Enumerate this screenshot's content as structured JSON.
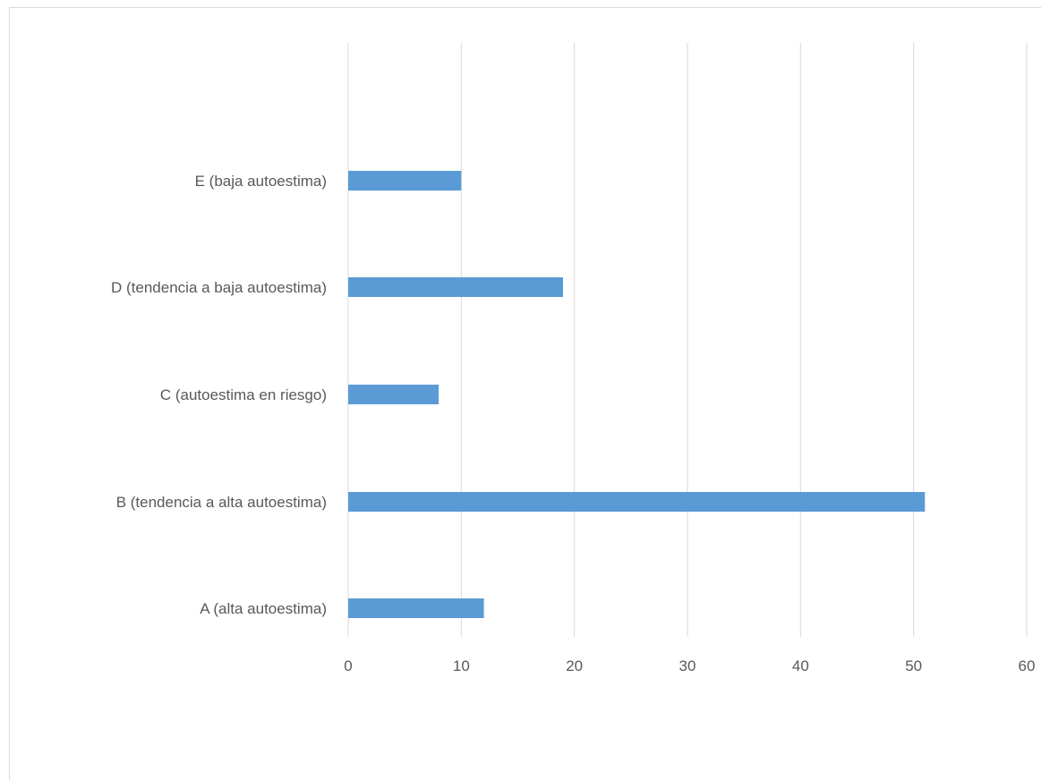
{
  "chart_data": {
    "type": "bar",
    "orientation": "horizontal",
    "categories": [
      "A (alta autoestima)",
      "B (tendencia a alta autoestima)",
      "C (autoestima en riesgo)",
      "D (tendencia a baja autoestima)",
      "E (baja autoestima)"
    ],
    "values": [
      12,
      51,
      8,
      19,
      10
    ],
    "xlim": [
      0,
      60
    ],
    "xticks": [
      "0",
      "10",
      "20",
      "30",
      "40",
      "50",
      "60"
    ],
    "grid": true,
    "bar_color": "#5b9bd5",
    "grid_color": "#d9d9d9",
    "text_color": "#595959"
  }
}
